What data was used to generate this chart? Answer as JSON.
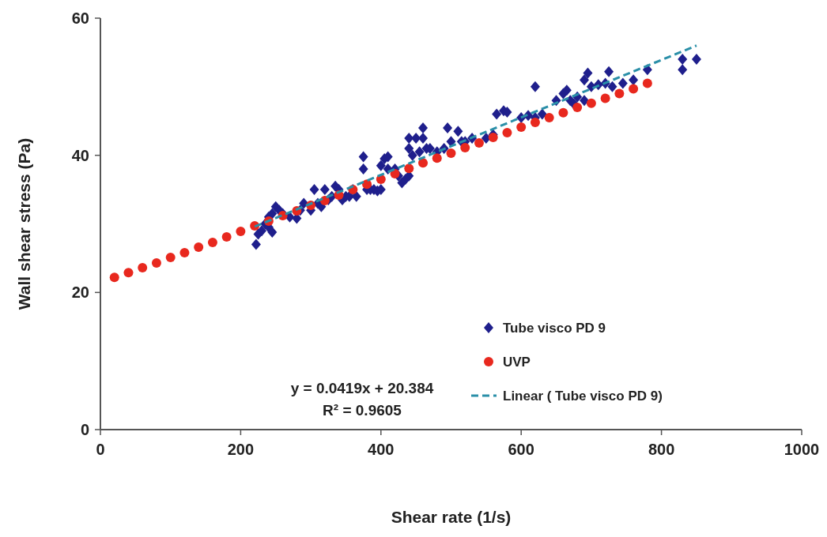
{
  "chart_data": {
    "type": "scatter",
    "xlabel": "Shear rate (1/s)",
    "ylabel": "Wall shear stress (Pa)",
    "xlim": [
      0,
      1000
    ],
    "xticks": [
      0,
      200,
      400,
      600,
      800,
      1000
    ],
    "ylim": [
      0,
      60
    ],
    "yticks": [
      0,
      20,
      40,
      60
    ],
    "grid": false,
    "legend": "bottom right",
    "annotations": [
      "y = 0.0419x + 20.384",
      "R² = 0.9605"
    ],
    "series": [
      {
        "name": "Tube visco PD 9",
        "marker": "diamond",
        "color": "#1f1f8c",
        "x": [
          222,
          225,
          230,
          235,
          240,
          240,
          245,
          245,
          250,
          255,
          260,
          270,
          280,
          285,
          290,
          300,
          305,
          310,
          315,
          320,
          325,
          330,
          335,
          340,
          345,
          350,
          355,
          360,
          365,
          375,
          375,
          380,
          385,
          390,
          395,
          400,
          400,
          405,
          410,
          410,
          420,
          425,
          430,
          435,
          440,
          440,
          440,
          445,
          450,
          455,
          460,
          460,
          465,
          470,
          480,
          490,
          495,
          500,
          510,
          515,
          520,
          530,
          550,
          560,
          565,
          575,
          580,
          600,
          610,
          620,
          620,
          630,
          650,
          660,
          665,
          670,
          675,
          680,
          690,
          690,
          695,
          700,
          710,
          720,
          725,
          730,
          745,
          760,
          780,
          830,
          830,
          850
        ],
        "values": [
          27,
          28.5,
          29,
          30,
          31,
          29.5,
          31.5,
          28.8,
          32.5,
          32,
          31.5,
          31,
          30.8,
          32,
          33,
          32,
          35,
          33,
          32.5,
          35,
          33.5,
          34,
          35.5,
          35,
          33.5,
          34,
          34,
          35,
          34,
          39.8,
          38,
          35,
          35,
          35,
          34.8,
          35,
          38.5,
          39.5,
          39.8,
          38,
          38,
          37,
          36,
          36.5,
          37,
          42.5,
          41,
          40,
          42.5,
          40.5,
          44,
          42.5,
          41,
          41,
          40.5,
          41,
          44,
          42,
          43.5,
          42,
          42,
          42.5,
          42.5,
          43,
          46,
          46.5,
          46.3,
          45.5,
          45.8,
          50,
          45.5,
          46,
          48,
          49,
          49.5,
          48,
          47.5,
          48.5,
          48,
          51,
          52,
          50,
          50.3,
          50.5,
          52.2,
          50,
          50.5,
          51,
          52.5,
          52.5,
          54,
          54
        ]
      },
      {
        "name": "UVP",
        "marker": "circle",
        "color": "#e8281e",
        "x": [
          20,
          40,
          60,
          80,
          100,
          120,
          140,
          160,
          180,
          200,
          220,
          240,
          260,
          280,
          300,
          320,
          340,
          360,
          380,
          400,
          420,
          440,
          460,
          480,
          500,
          520,
          540,
          560,
          580,
          600,
          620,
          640,
          660,
          680,
          700,
          720,
          740,
          760,
          780
        ],
        "values": [
          22.2,
          22.9,
          23.6,
          24.3,
          25.1,
          25.8,
          26.6,
          27.3,
          28.1,
          28.9,
          29.7,
          30.4,
          31.2,
          31.9,
          32.7,
          33.4,
          34.2,
          35,
          35.8,
          36.5,
          37.3,
          38.1,
          38.9,
          39.6,
          40.3,
          41.1,
          41.8,
          42.6,
          43.3,
          44.1,
          44.8,
          45.5,
          46.2,
          47,
          47.6,
          48.3,
          49,
          49.7,
          50.5
        ]
      },
      {
        "name": "Linear ( Tube visco PD 9)",
        "type": "line",
        "marker": "none",
        "line_style": "dashed",
        "color": "#2a8fa8",
        "x": [
          220,
          850
        ],
        "values": [
          29.6,
          56
        ]
      }
    ]
  }
}
